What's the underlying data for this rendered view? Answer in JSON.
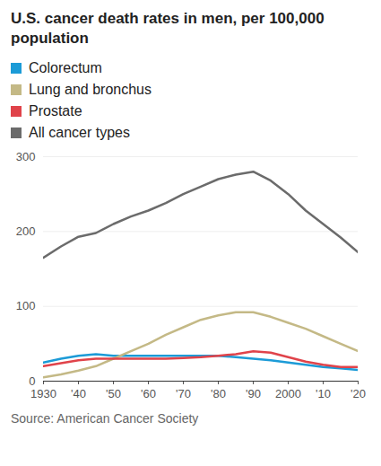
{
  "chart_data": {
    "type": "line",
    "title": "U.S. cancer death rates in men, per 100,000 population",
    "source": "Source: American Cancer Society",
    "x": [
      1930,
      1935,
      1940,
      1945,
      1950,
      1955,
      1960,
      1965,
      1970,
      1975,
      1980,
      1985,
      1990,
      1995,
      2000,
      2005,
      2010,
      2015,
      2020
    ],
    "series": [
      {
        "name": "Colorectum",
        "color": "#1c9bd7",
        "values": [
          25,
          30,
          34,
          36,
          34,
          34,
          34,
          34,
          34,
          34,
          34,
          32,
          30,
          28,
          25,
          22,
          19,
          17,
          15
        ]
      },
      {
        "name": "Lung and bronchus",
        "color": "#c4b986",
        "values": [
          5,
          9,
          14,
          20,
          30,
          40,
          50,
          62,
          72,
          82,
          88,
          92,
          92,
          86,
          78,
          70,
          60,
          50,
          40
        ]
      },
      {
        "name": "Prostate",
        "color": "#e0434a",
        "values": [
          20,
          24,
          28,
          30,
          30,
          30,
          30,
          30,
          31,
          32,
          34,
          36,
          40,
          38,
          32,
          26,
          22,
          19,
          19
        ]
      },
      {
        "name": "All cancer types",
        "color": "#6b6b6b",
        "values": [
          165,
          180,
          193,
          198,
          210,
          220,
          228,
          238,
          250,
          260,
          270,
          276,
          280,
          268,
          250,
          228,
          210,
          192,
          172
        ]
      }
    ],
    "xlim": [
      1930,
      2020
    ],
    "xticks": [
      {
        "value": 1930,
        "label": "1930"
      },
      {
        "value": 1940,
        "label": "'40"
      },
      {
        "value": 1950,
        "label": "'50"
      },
      {
        "value": 1960,
        "label": "'60"
      },
      {
        "value": 1970,
        "label": "'70"
      },
      {
        "value": 1980,
        "label": "'80"
      },
      {
        "value": 1990,
        "label": "'90"
      },
      {
        "value": 2000,
        "label": "2000"
      },
      {
        "value": 2010,
        "label": "'10"
      },
      {
        "value": 2020,
        "label": "'20"
      }
    ],
    "ylim": [
      0,
      300
    ],
    "yticks": [
      0,
      100,
      200,
      300
    ],
    "grid": true
  }
}
